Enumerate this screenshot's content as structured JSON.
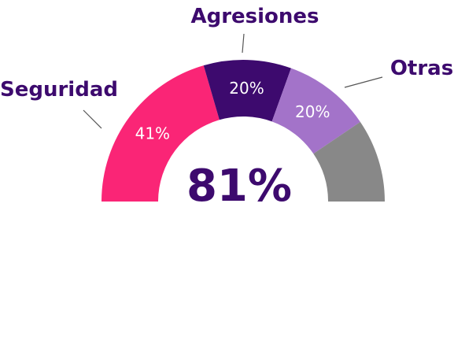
{
  "chart_data": {
    "type": "pie",
    "subtype": "semi-donut",
    "center_label": "81%",
    "slices": [
      {
        "label": "Seguridad",
        "value": 41,
        "value_label": "41%",
        "color": "#fa2576"
      },
      {
        "label": "Agresiones",
        "value": 20,
        "value_label": "20%",
        "color": "#3d0a6e"
      },
      {
        "label": "Otras",
        "value": 20,
        "value_label": "20%",
        "color": "#a373c9"
      },
      {
        "label": "",
        "value": 19,
        "value_label": "",
        "color": "#888888"
      }
    ],
    "colors": {
      "text": "#3d0a6e",
      "value_text": "#ffffff"
    }
  }
}
